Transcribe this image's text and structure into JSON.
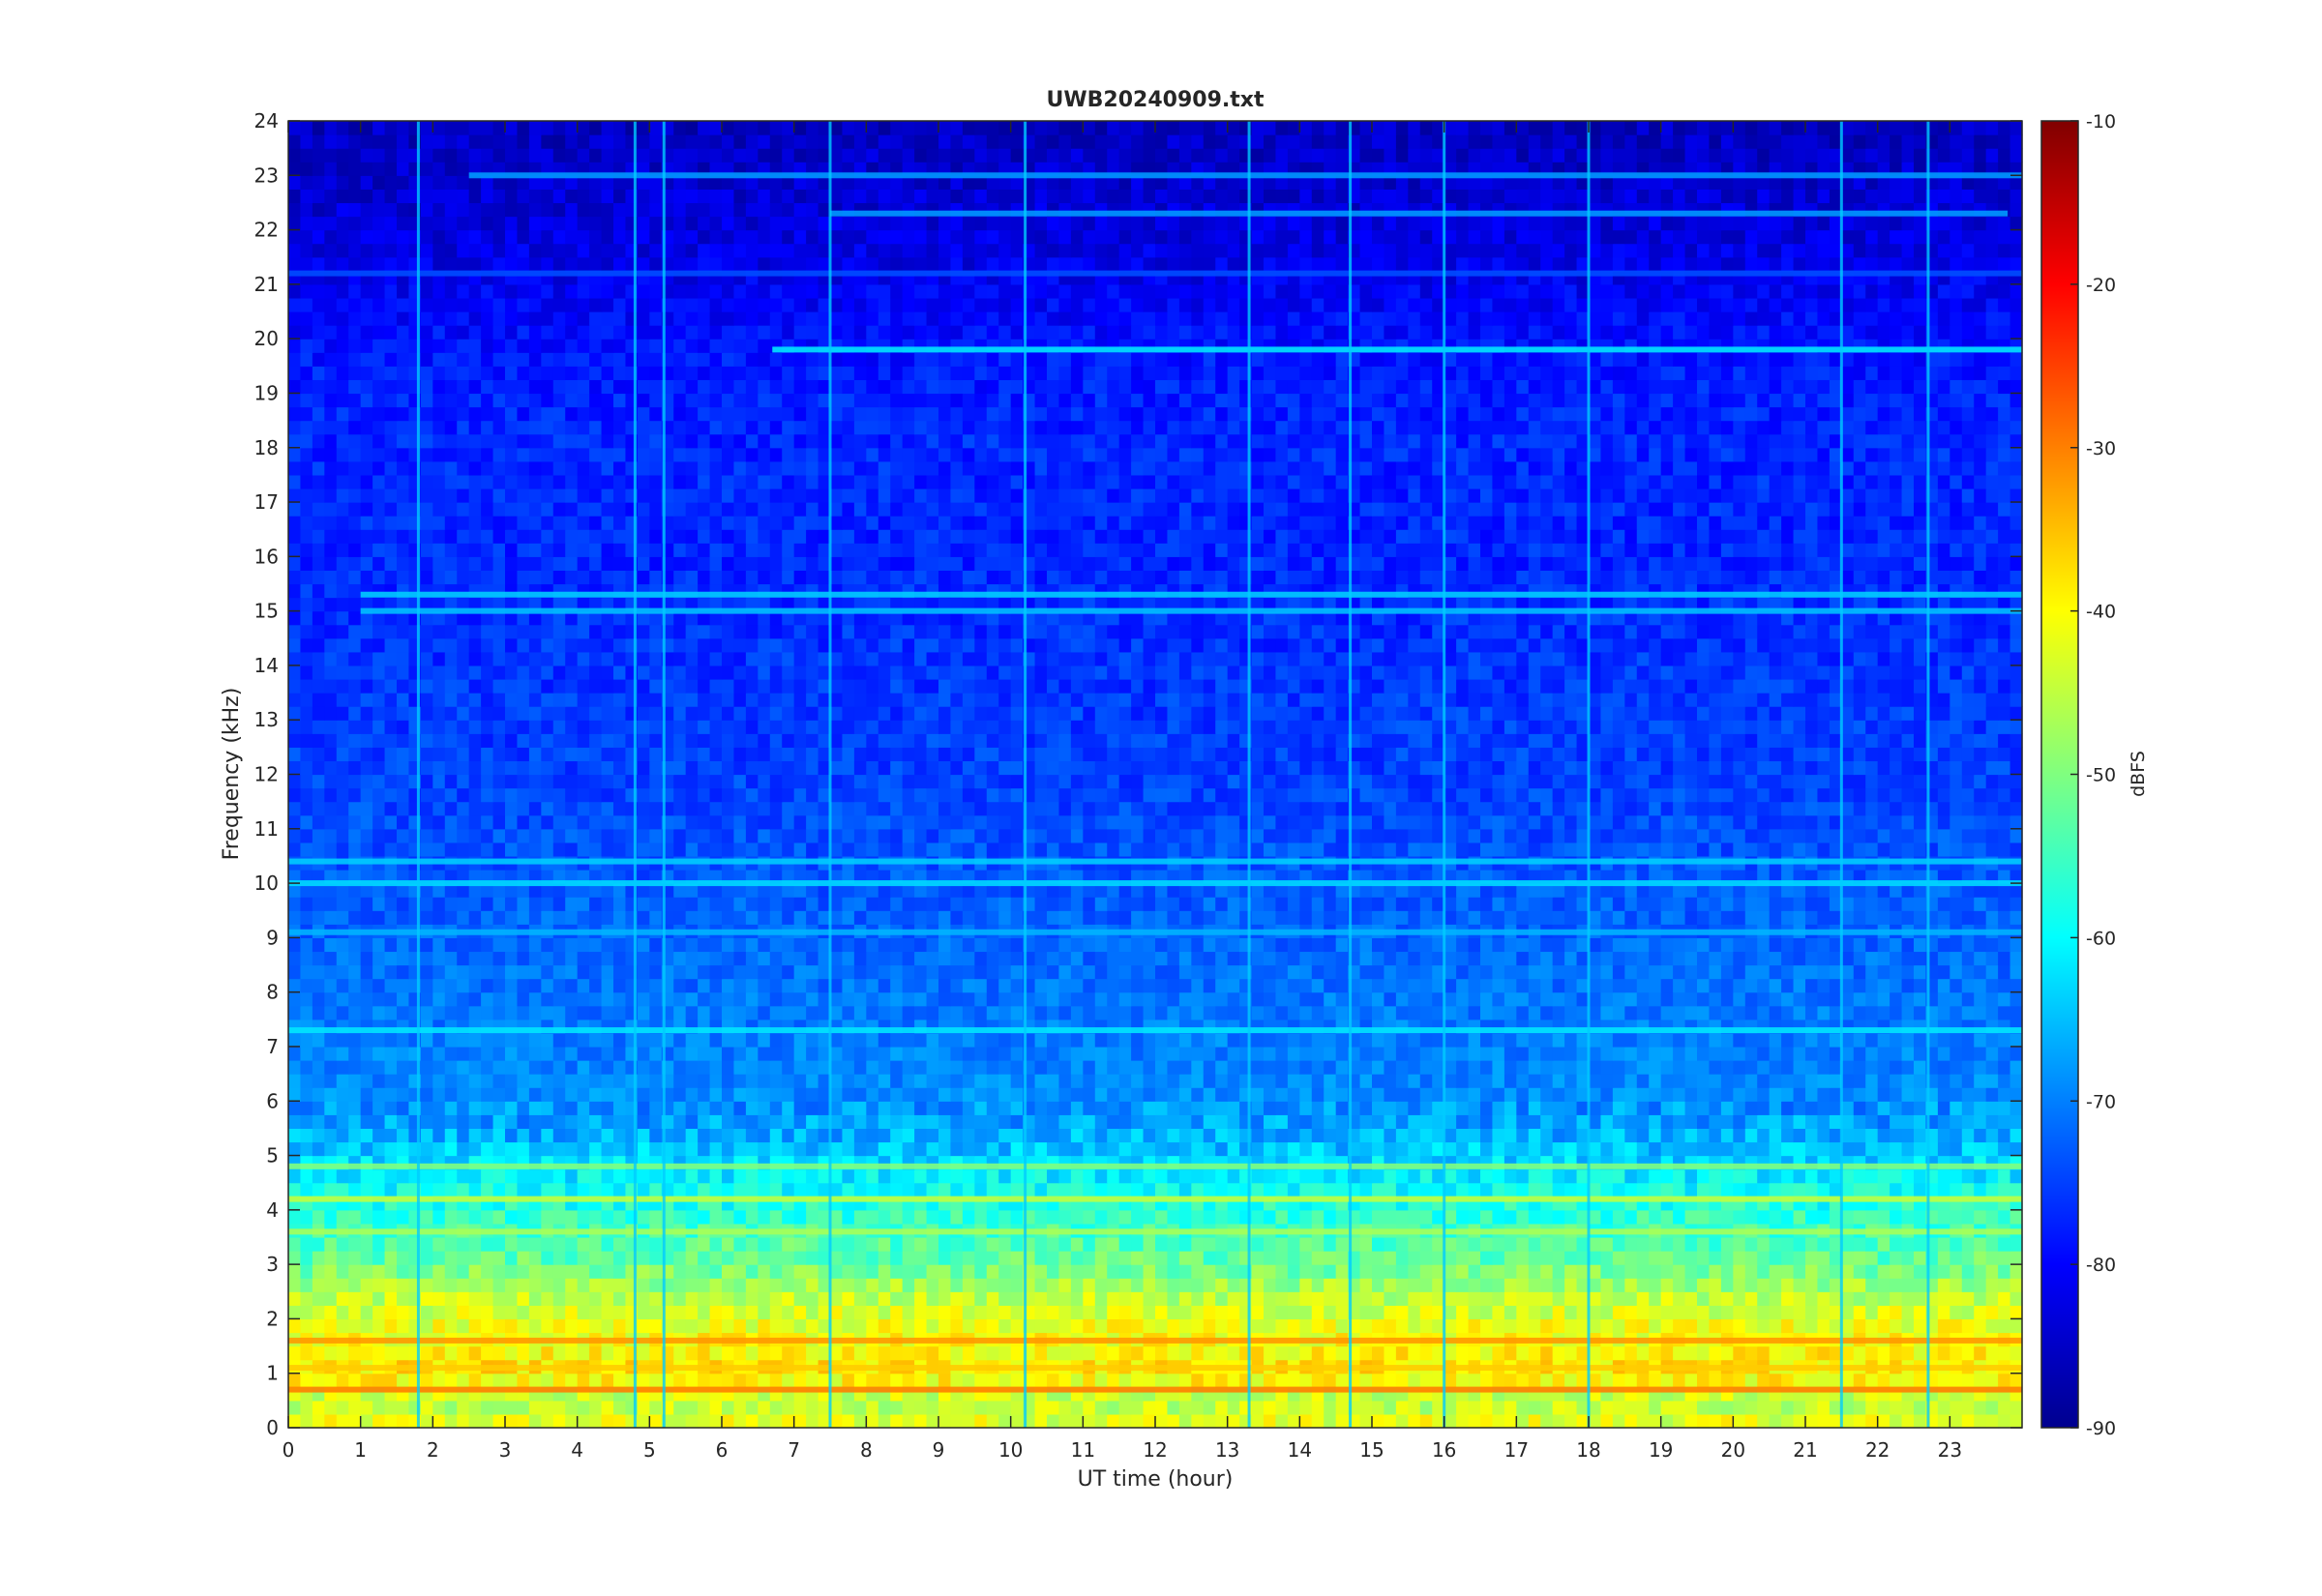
{
  "chart_data": {
    "type": "heatmap",
    "title": "UWB20240909.txt",
    "xlabel": "UT time (hour)",
    "ylabel": "Frequency (kHz)",
    "colorbar_label": "dBFS",
    "xlim": [
      0,
      24
    ],
    "ylim": [
      0,
      24
    ],
    "clim": [
      -90,
      -10
    ],
    "colormap": "jet",
    "x_ticks": [
      "0",
      "1",
      "2",
      "3",
      "4",
      "5",
      "6",
      "7",
      "8",
      "9",
      "10",
      "11",
      "12",
      "13",
      "14",
      "15",
      "16",
      "17",
      "18",
      "19",
      "20",
      "21",
      "22",
      "23"
    ],
    "y_ticks": [
      "0",
      "1",
      "2",
      "3",
      "4",
      "5",
      "6",
      "7",
      "8",
      "9",
      "10",
      "11",
      "12",
      "13",
      "14",
      "15",
      "16",
      "17",
      "18",
      "19",
      "20",
      "21",
      "22",
      "23",
      "24"
    ],
    "colorbar_ticks": [
      "-90",
      "-80",
      "-70",
      "-60",
      "-50",
      "-40",
      "-30",
      "-20",
      "-10"
    ],
    "frequency_profile_khz_dbfs": [
      {
        "f": 0.1,
        "dbfs": -42
      },
      {
        "f": 0.5,
        "dbfs": -46
      },
      {
        "f": 1.0,
        "dbfs": -38
      },
      {
        "f": 1.5,
        "dbfs": -40
      },
      {
        "f": 2.0,
        "dbfs": -42
      },
      {
        "f": 2.5,
        "dbfs": -46
      },
      {
        "f": 3.0,
        "dbfs": -52
      },
      {
        "f": 3.5,
        "dbfs": -54
      },
      {
        "f": 4.0,
        "dbfs": -57
      },
      {
        "f": 4.5,
        "dbfs": -60
      },
      {
        "f": 5.0,
        "dbfs": -64
      },
      {
        "f": 5.5,
        "dbfs": -67
      },
      {
        "f": 6.0,
        "dbfs": -69
      },
      {
        "f": 7.0,
        "dbfs": -70
      },
      {
        "f": 8.0,
        "dbfs": -71
      },
      {
        "f": 9.0,
        "dbfs": -72
      },
      {
        "f": 10.0,
        "dbfs": -73
      },
      {
        "f": 12.0,
        "dbfs": -75
      },
      {
        "f": 14.0,
        "dbfs": -76
      },
      {
        "f": 16.0,
        "dbfs": -77
      },
      {
        "f": 18.0,
        "dbfs": -77
      },
      {
        "f": 19.5,
        "dbfs": -78
      },
      {
        "f": 20.5,
        "dbfs": -80
      },
      {
        "f": 21.5,
        "dbfs": -82
      },
      {
        "f": 23.0,
        "dbfs": -84
      },
      {
        "f": 24.0,
        "dbfs": -85
      }
    ],
    "tonal_lines": [
      {
        "f_khz": 19.8,
        "dbfs": -62,
        "t_start": 6.7,
        "t_end": 24
      },
      {
        "f_khz": 15.3,
        "dbfs": -64,
        "t_start": 1.0,
        "t_end": 24
      },
      {
        "f_khz": 15.0,
        "dbfs": -65,
        "t_start": 1.0,
        "t_end": 24
      },
      {
        "f_khz": 10.0,
        "dbfs": -63,
        "t_start": 0.0,
        "t_end": 24
      },
      {
        "f_khz": 10.4,
        "dbfs": -64,
        "t_start": 0.0,
        "t_end": 24
      },
      {
        "f_khz": 9.1,
        "dbfs": -66,
        "t_start": 0.0,
        "t_end": 24
      },
      {
        "f_khz": 7.3,
        "dbfs": -62,
        "t_start": 0.0,
        "t_end": 24
      },
      {
        "f_khz": 4.2,
        "dbfs": -45,
        "t_start": 0.0,
        "t_end": 24
      },
      {
        "f_khz": 4.8,
        "dbfs": -50,
        "t_start": 0.0,
        "t_end": 24
      },
      {
        "f_khz": 3.6,
        "dbfs": -47,
        "t_start": 0.0,
        "t_end": 24
      },
      {
        "f_khz": 1.6,
        "dbfs": -32,
        "t_start": 0.0,
        "t_end": 24
      },
      {
        "f_khz": 1.1,
        "dbfs": -36,
        "t_start": 0.0,
        "t_end": 24
      },
      {
        "f_khz": 0.7,
        "dbfs": -30,
        "t_start": 0.0,
        "t_end": 24
      },
      {
        "f_khz": 23.0,
        "dbfs": -68,
        "t_start": 2.5,
        "t_end": 24
      },
      {
        "f_khz": 22.3,
        "dbfs": -68,
        "t_start": 7.5,
        "t_end": 23.8
      },
      {
        "f_khz": 21.2,
        "dbfs": -74,
        "t_start": 0.0,
        "t_end": 24
      }
    ],
    "impulsive_events_hour": [
      1.8,
      4.8,
      5.2,
      7.5,
      10.2,
      13.3,
      14.7,
      16.0,
      18.0,
      21.5,
      22.7
    ]
  }
}
